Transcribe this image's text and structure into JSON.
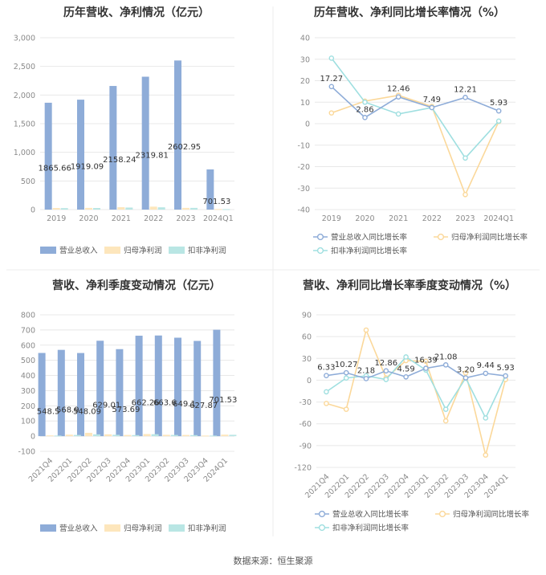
{
  "source": "数据来源：恒生聚源",
  "colors": {
    "revenue": "#8eacd8",
    "parent_profit": "#fde6bc",
    "deducted_profit": "#b9e6e4",
    "grid": "#e8e8e8",
    "axis_text": "#8a8a8a",
    "title": "#333333"
  },
  "chart_data": [
    {
      "type": "bar",
      "title": "历年营收、净利情况（亿元）",
      "categories": [
        "2019",
        "2020",
        "2021",
        "2022",
        "2023",
        "2024Q1"
      ],
      "yticks": [
        "0",
        "500",
        "1,000",
        "1,500",
        "2,000",
        "2,500",
        "3,000"
      ],
      "ylim": [
        0,
        3000
      ],
      "series": [
        {
          "name": "营业总收入",
          "values": [
            1865.66,
            1919.09,
            2158.24,
            2319.81,
            2602.95,
            701.53
          ],
          "labels": [
            "1865.66",
            "1919.09",
            "2158.24",
            "2319.81",
            "2602.95",
            "701.53"
          ]
        },
        {
          "name": "归母净利润",
          "values": [
            28,
            30,
            42,
            52,
            30,
            10
          ]
        },
        {
          "name": "扣非净利润",
          "values": [
            26,
            28,
            36,
            40,
            30,
            8
          ]
        }
      ],
      "legend": "bottom"
    },
    {
      "type": "line",
      "title": "历年营收、净利同比增长率情况（%）",
      "categories": [
        "2019",
        "2020",
        "2021",
        "2022",
        "2023",
        "2024Q1"
      ],
      "yticks": [
        "-40",
        "-30",
        "-20",
        "-10",
        "0",
        "10",
        "20",
        "30",
        "40"
      ],
      "ylim": [
        -40,
        40
      ],
      "series": [
        {
          "name": "营业总收入同比增长率",
          "values": [
            17.27,
            2.86,
            12.46,
            7.49,
            12.21,
            5.93
          ],
          "labels": [
            "17.27",
            "2.86",
            "12.46",
            "7.49",
            "12.21",
            "5.93"
          ]
        },
        {
          "name": "归母净利润同比增长率",
          "values": [
            5,
            10.5,
            13.2,
            8,
            -33,
            1
          ]
        },
        {
          "name": "扣非净利润同比增长率",
          "values": [
            30.5,
            10,
            4.5,
            7.5,
            -16,
            1.2
          ]
        }
      ],
      "legend": "bottom"
    },
    {
      "type": "bar",
      "title": "营收、净利季度变动情况（亿元）",
      "categories": [
        "2021Q4",
        "2022Q1",
        "2022Q2",
        "2022Q3",
        "2022Q4",
        "2023Q1",
        "2023Q2",
        "2023Q3",
        "2023Q4",
        "2024Q1"
      ],
      "yticks": [
        "-100",
        "0",
        "100",
        "200",
        "300",
        "400",
        "500",
        "600",
        "700",
        "800"
      ],
      "ylim": [
        -100,
        800
      ],
      "series": [
        {
          "name": "营业总收入",
          "values": [
            548.5,
            568.9,
            548.09,
            629.01,
            573.69,
            662.26,
            663.6,
            649.1,
            627.87,
            701.53
          ],
          "labels": [
            "548.5",
            "568.9",
            "548.09",
            "629.01",
            "573.69",
            "662.26",
            "663.6",
            "649.1",
            "627.87",
            "701.53"
          ]
        },
        {
          "name": "归母净利润",
          "values": [
            5,
            10,
            22,
            12,
            8,
            14,
            9,
            8,
            4,
            10
          ]
        },
        {
          "name": "扣非净利润",
          "values": [
            4,
            8,
            12,
            9,
            7,
            13,
            8,
            7,
            4,
            9
          ]
        }
      ],
      "legend": "bottom"
    },
    {
      "type": "line",
      "title": "营收、净利同比增长率季度变动情况（%）",
      "categories": [
        "2021Q4",
        "2022Q1",
        "2022Q2",
        "2022Q3",
        "2022Q4",
        "2023Q1",
        "2023Q2",
        "2023Q3",
        "2023Q4",
        "2024Q1"
      ],
      "yticks": [
        "-120",
        "-90",
        "-60",
        "-30",
        "0",
        "30",
        "60",
        "90"
      ],
      "ylim": [
        -120,
        90
      ],
      "series": [
        {
          "name": "营业总收入同比增长率",
          "values": [
            6.33,
            10.27,
            2.18,
            12.86,
            4.59,
            16.39,
            21.08,
            3.2,
            9.44,
            5.93
          ],
          "labels": [
            "6.33",
            "10.27",
            "2.18",
            "12.86",
            "4.59",
            "16.39",
            "21.08",
            "3.20",
            "9.44",
            "5.93"
          ]
        },
        {
          "name": "归母净利润同比增长率",
          "values": [
            -32,
            -40,
            69,
            3,
            27,
            26,
            -56,
            10,
            -103,
            1
          ]
        },
        {
          "name": "扣非净利润同比增长率",
          "values": [
            -16,
            3,
            6,
            1,
            32,
            14,
            -40,
            3,
            -52,
            6
          ]
        }
      ],
      "legend": "bottom"
    }
  ]
}
